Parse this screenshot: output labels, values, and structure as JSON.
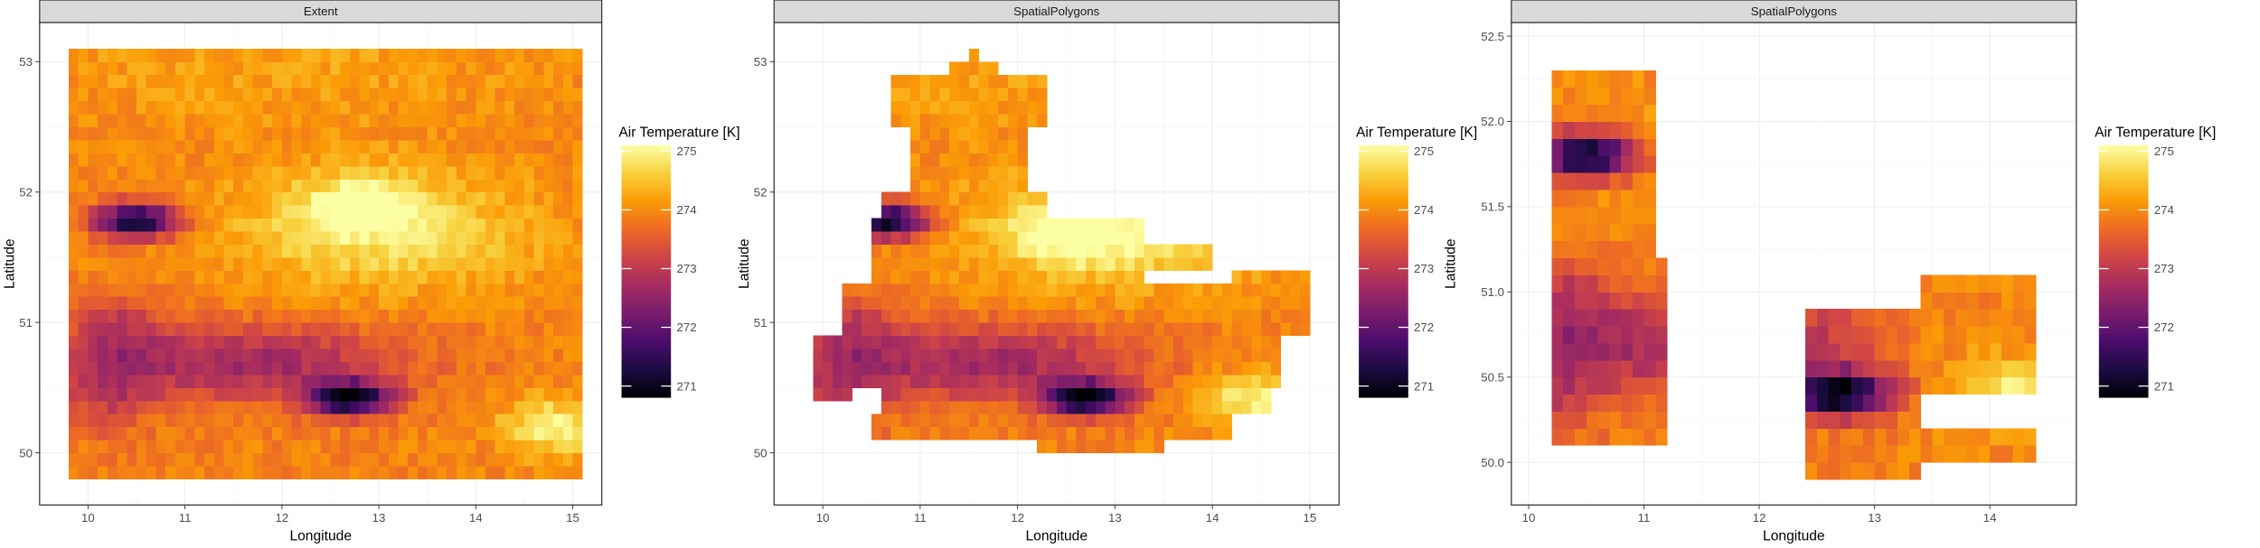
{
  "figure": {
    "background": "#ffffff"
  },
  "colors": {
    "panel_border": "#333333",
    "strip_fill": "#d9d9d9",
    "grid": "#ebebeb",
    "palette": [
      "#000004",
      "#1b0c41",
      "#4a0c6b",
      "#781c6d",
      "#a52c60",
      "#cf4446",
      "#ed6925",
      "#fb9b06",
      "#f7d13d",
      "#fcffa4"
    ]
  },
  "chart_data": [
    {
      "type": "heatmap",
      "title": "Extent",
      "xlabel": "Longitude",
      "ylabel": "Latitude",
      "xlim": [
        9.5,
        15.3
      ],
      "ylim": [
        49.6,
        53.3
      ],
      "xticks": [
        10,
        11,
        12,
        13,
        14,
        15
      ],
      "yticks": [
        50,
        51,
        52,
        53
      ],
      "ytick_labels": [
        "50",
        "51",
        "52",
        "53"
      ],
      "grid": true,
      "legend": {
        "title": "Air Temperature [K]",
        "position": "right",
        "min": 270.8,
        "max": 275.1,
        "ticks": [
          271,
          272,
          273,
          274,
          275
        ]
      },
      "cells": {
        "dx": 0.1,
        "dy": 0.1
      },
      "region": [
        [
          9.75,
          15.15,
          49.75,
          53.15
        ]
      ],
      "cold_spots": [
        {
          "lon": 10.5,
          "lat": 51.78,
          "value": 270.9
        },
        {
          "lon": 12.7,
          "lat": 50.42,
          "value": 270.9
        }
      ],
      "warm_spots": [
        {
          "lon": 14.8,
          "lat": 50.2,
          "value": 275.0
        },
        {
          "lon": 12.8,
          "lat": 51.9,
          "value": 274.9
        }
      ]
    },
    {
      "type": "heatmap",
      "title": "SpatialPolygons",
      "xlabel": "Longitude",
      "ylabel": "Latitude",
      "xlim": [
        9.5,
        15.3
      ],
      "ylim": [
        49.6,
        53.3
      ],
      "xticks": [
        10,
        11,
        12,
        13,
        14,
        15
      ],
      "yticks": [
        50,
        51,
        52,
        53
      ],
      "ytick_labels": [
        "50",
        "51",
        "52",
        "53"
      ],
      "grid": true,
      "legend": {
        "title": "Air Temperature [K]",
        "position": "right",
        "min": 270.8,
        "max": 275.1,
        "ticks": [
          271,
          272,
          273,
          274,
          275
        ]
      },
      "cells": {
        "dx": 0.1,
        "dy": 0.1
      },
      "region": [
        [
          11.55,
          11.65,
          53.05,
          53.15
        ],
        [
          11.35,
          11.85,
          52.95,
          53.05
        ],
        [
          10.75,
          12.35,
          52.55,
          52.95
        ],
        [
          10.95,
          12.15,
          52.05,
          52.55
        ],
        [
          10.65,
          12.35,
          51.85,
          52.05
        ],
        [
          10.55,
          13.35,
          51.35,
          51.85
        ],
        [
          13.35,
          14.05,
          51.45,
          51.65
        ],
        [
          10.25,
          14.25,
          50.95,
          51.35
        ],
        [
          14.25,
          15.05,
          50.95,
          51.45
        ],
        [
          9.95,
          14.75,
          50.55,
          50.95
        ],
        [
          9.95,
          10.35,
          50.45,
          50.55
        ],
        [
          10.65,
          14.65,
          50.35,
          50.55
        ],
        [
          10.55,
          14.25,
          50.15,
          50.35
        ],
        [
          12.25,
          13.55,
          49.95,
          50.15
        ]
      ],
      "cold_spots": [
        {
          "lon": 10.65,
          "lat": 51.78,
          "value": 270.9
        },
        {
          "lon": 12.7,
          "lat": 50.42,
          "value": 270.9
        }
      ],
      "warm_spots": [
        {
          "lon": 14.4,
          "lat": 50.4,
          "value": 275.0
        },
        {
          "lon": 12.6,
          "lat": 51.7,
          "value": 274.9
        }
      ]
    },
    {
      "type": "heatmap",
      "title": "SpatialPolygons",
      "xlabel": "Longitude",
      "ylabel": "Latitude",
      "xlim": [
        9.85,
        14.75
      ],
      "ylim": [
        49.75,
        52.58
      ],
      "xticks": [
        10,
        11,
        12,
        13,
        14
      ],
      "yticks": [
        50.0,
        50.5,
        51.0,
        51.5,
        52.0,
        52.5
      ],
      "ytick_labels": [
        "50.0",
        "50.5",
        "51.0",
        "51.5",
        "52.0",
        "52.5"
      ],
      "grid": true,
      "legend": {
        "title": "Air Temperature [K]",
        "position": "right",
        "min": 270.8,
        "max": 275.1,
        "ticks": [
          271,
          272,
          273,
          274,
          275
        ]
      },
      "cells": {
        "dx": 0.1,
        "dy": 0.1
      },
      "region": [
        [
          10.15,
          11.15,
          51.25,
          52.35
        ],
        [
          10.25,
          11.25,
          50.15,
          51.25
        ],
        [
          13.45,
          14.45,
          50.95,
          51.15
        ],
        [
          12.45,
          14.45,
          50.45,
          50.95
        ],
        [
          12.45,
          13.45,
          50.05,
          50.45
        ],
        [
          12.45,
          14.45,
          50.05,
          50.25
        ],
        [
          12.45,
          13.45,
          49.85,
          50.05
        ]
      ],
      "cold_spots": [
        {
          "lon": 10.5,
          "lat": 51.8,
          "value": 270.8
        },
        {
          "lon": 12.7,
          "lat": 50.4,
          "value": 270.9
        }
      ],
      "warm_spots": [
        {
          "lon": 14.3,
          "lat": 50.4,
          "value": 275.0
        },
        {
          "lon": 13.5,
          "lat": 50.7,
          "value": 274.2
        }
      ]
    }
  ]
}
